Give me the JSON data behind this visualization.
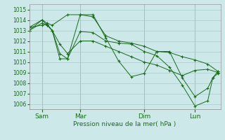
{
  "xlabel": "Pression niveau de la mer( hPa )",
  "bg_color": "#cce8e8",
  "grid_color": "#aacccc",
  "line_color": "#1a6b1a",
  "marker": "+",
  "ylim": [
    1005.5,
    1015.5
  ],
  "yticks": [
    1006,
    1007,
    1008,
    1009,
    1010,
    1011,
    1012,
    1013,
    1014,
    1015
  ],
  "xlim": [
    0,
    7.5
  ],
  "xtick_positions": [
    0.5,
    2.0,
    4.5,
    6.5
  ],
  "xtick_labels": [
    "Sam",
    "Mar",
    "Dim",
    "Lun"
  ],
  "vline_positions": [
    0.5,
    2.0,
    4.5,
    6.5
  ],
  "series": [
    {
      "x": [
        0.0,
        0.5,
        0.7,
        0.9,
        1.5,
        2.0,
        2.5,
        3.0,
        3.5,
        4.0,
        4.5,
        5.0,
        5.5,
        6.0,
        6.5,
        7.0,
        7.4
      ],
      "y": [
        1013.0,
        1014.0,
        1013.7,
        1013.5,
        1014.5,
        1014.5,
        1014.3,
        1012.5,
        1012.0,
        1011.8,
        1011.5,
        1011.0,
        1010.9,
        1010.5,
        1010.2,
        1009.8,
        1009.1
      ]
    },
    {
      "x": [
        0.0,
        0.5,
        0.7,
        0.9,
        1.2,
        1.5,
        2.0,
        2.5,
        3.0,
        3.5,
        4.0,
        4.5,
        5.0,
        5.5,
        6.0,
        6.5,
        7.0,
        7.4
      ],
      "y": [
        1013.0,
        1013.7,
        1013.5,
        1013.0,
        1011.7,
        1010.8,
        1012.0,
        1012.0,
        1011.5,
        1011.0,
        1010.5,
        1010.0,
        1009.7,
        1009.2,
        1008.7,
        1009.2,
        1009.3,
        1009.0
      ]
    },
    {
      "x": [
        0.0,
        0.5,
        0.7,
        0.9,
        1.2,
        1.5,
        2.0,
        2.5,
        3.0,
        3.5,
        4.0,
        4.5,
        5.0,
        5.5,
        6.0,
        6.5,
        7.0,
        7.2,
        7.4
      ],
      "y": [
        1013.3,
        1013.5,
        1013.6,
        1013.0,
        1010.3,
        1010.3,
        1014.5,
        1014.5,
        1012.3,
        1010.1,
        1008.6,
        1008.9,
        1011.0,
        1011.0,
        1008.5,
        1006.7,
        1007.5,
        1008.5,
        1008.9
      ]
    },
    {
      "x": [
        0.0,
        0.5,
        0.7,
        0.9,
        1.2,
        1.5,
        2.0,
        2.5,
        3.0,
        3.5,
        4.0,
        4.5,
        5.0,
        5.5,
        6.0,
        6.5,
        7.0,
        7.2,
        7.4
      ],
      "y": [
        1013.3,
        1014.0,
        1013.5,
        1013.0,
        1010.8,
        1010.3,
        1012.9,
        1012.8,
        1012.0,
        1011.8,
        1011.7,
        1011.0,
        1010.6,
        1009.5,
        1007.8,
        1005.8,
        1006.3,
        1008.5,
        1009.1
      ]
    }
  ]
}
